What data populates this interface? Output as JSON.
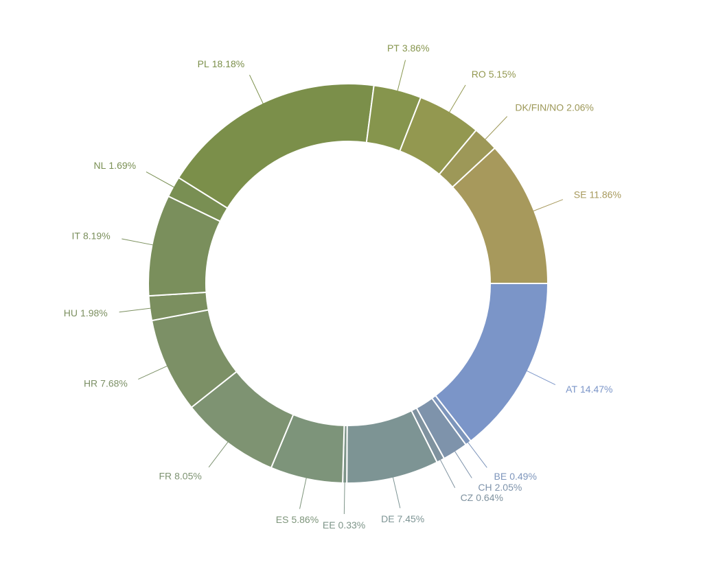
{
  "chart_data": {
    "type": "donut",
    "categories": [
      "AT",
      "BE",
      "CH",
      "CZ",
      "DE",
      "EE",
      "ES",
      "FR",
      "HR",
      "HU",
      "IT",
      "NL",
      "PL",
      "PT",
      "RO",
      "DK/FIN/NO",
      "SE"
    ],
    "values": [
      14.47,
      0.49,
      2.05,
      0.64,
      7.45,
      0.33,
      5.86,
      8.05,
      7.68,
      1.98,
      8.19,
      1.69,
      18.18,
      3.86,
      5.15,
      2.06,
      11.86
    ],
    "value_labels": [
      "14.47%",
      "0.49%",
      "2.05%",
      "0.64%",
      "7.45%",
      "0.33%",
      "5.86%",
      "8.05%",
      "7.68%",
      "1.98%",
      "8.19%",
      "1.69%",
      "18.18%",
      "3.86%",
      "5.15%",
      "2.06%",
      "11.86%"
    ],
    "colors": [
      "#7b95c8",
      "#7d95bb",
      "#7e93ab",
      "#7f929f",
      "#7d9494",
      "#7d9488",
      "#7d947a",
      "#7e9372",
      "#7c9066",
      "#7b8f5f",
      "#7a8f5c",
      "#798f53",
      "#7b8f4a",
      "#86954d",
      "#939850",
      "#9d9858",
      "#a7995c"
    ]
  }
}
